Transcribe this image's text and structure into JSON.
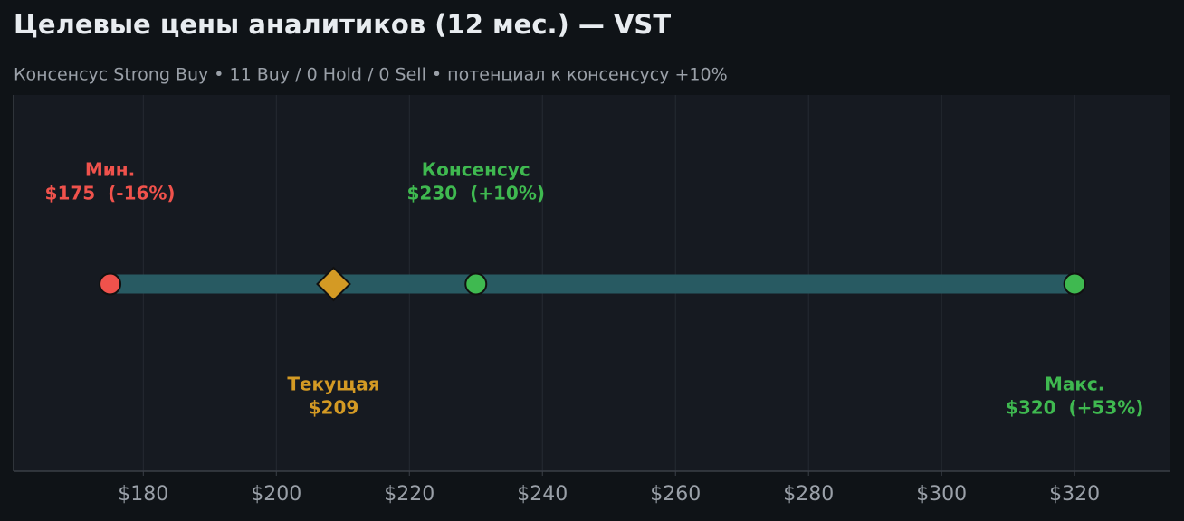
{
  "chart_data": {
    "type": "range",
    "title": "Целевые цены аналитиков (12 мес.) — VST",
    "subtitle": "Консенсус Strong Buy  •  11 Buy / 0 Hold / 0 Sell  •  потенциал к консенсусу +10%",
    "categories": [
      "Мин.",
      "Текущая",
      "Консенсус",
      "Макс."
    ],
    "values": [
      175,
      208.6,
      230,
      320
    ],
    "value_labels": [
      "$175  (-16%)",
      "$209",
      "$230  (+10%)",
      "$320  (+53%)"
    ],
    "colors": [
      "#f0524c",
      "#d49a24",
      "#3fb950",
      "#3fb950"
    ],
    "shapes": [
      "circle",
      "diamond",
      "circle",
      "circle"
    ],
    "label_positions": [
      "above",
      "below",
      "above",
      "below"
    ],
    "range_color": "#285a62",
    "xlim": [
      160.5,
      334.4
    ],
    "xticks": [
      {
        "value": 180,
        "label": "$180"
      },
      {
        "value": 200,
        "label": "$200"
      },
      {
        "value": 220,
        "label": "$220"
      },
      {
        "value": 240,
        "label": "$240"
      },
      {
        "value": 260,
        "label": "$260"
      },
      {
        "value": 280,
        "label": "$280"
      },
      {
        "value": 300,
        "label": "$300"
      },
      {
        "value": 320,
        "label": "$320"
      }
    ],
    "grid": true
  }
}
